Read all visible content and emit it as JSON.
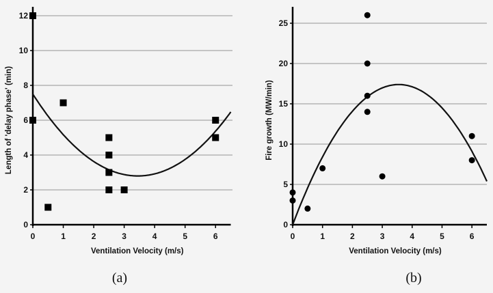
{
  "chart_data": [
    {
      "type": "scatter",
      "caption": "(a)",
      "xlabel": "Ventilation Velocity (m/s)",
      "ylabel": "Length of 'delay phase' (min)",
      "xlim": [
        0,
        6.5
      ],
      "ylim": [
        0,
        12
      ],
      "xticks": [
        0,
        1,
        2,
        3,
        4,
        5,
        6
      ],
      "yticks": [
        0,
        2,
        4,
        6,
        8,
        10,
        12
      ],
      "grid": "horizontal",
      "marker": "square",
      "points": [
        [
          0,
          12
        ],
        [
          0,
          6
        ],
        [
          0.5,
          1
        ],
        [
          1,
          7
        ],
        [
          2.5,
          5
        ],
        [
          2.5,
          4
        ],
        [
          2.5,
          3
        ],
        [
          2.5,
          2
        ],
        [
          3,
          2
        ],
        [
          6,
          6
        ],
        [
          6,
          5
        ]
      ],
      "trendline": {
        "type": "quadratic",
        "coefficients": [
          0.395,
          -2.7255,
          7.5
        ]
      }
    },
    {
      "type": "scatter",
      "caption": "(b)",
      "xlabel": "Ventilation Velocity (m/s)",
      "ylabel": "Fire growth (MW/min)",
      "xlim": [
        0,
        6.5
      ],
      "ylim": [
        0,
        27
      ],
      "xticks": [
        0,
        1,
        2,
        3,
        4,
        5,
        6
      ],
      "yticks": [
        0,
        5,
        10,
        15,
        20,
        25
      ],
      "grid": "horizontal",
      "marker": "circle",
      "points": [
        [
          0,
          4
        ],
        [
          0,
          3
        ],
        [
          0.5,
          2
        ],
        [
          1,
          7
        ],
        [
          2.5,
          26
        ],
        [
          2.5,
          20
        ],
        [
          2.5,
          16
        ],
        [
          2.5,
          14
        ],
        [
          3,
          6
        ],
        [
          6,
          11
        ],
        [
          6,
          8
        ]
      ],
      "trendline": {
        "type": "quadratic",
        "coefficients": [
          -1.38,
          9.798,
          0
        ]
      }
    }
  ],
  "colors": {
    "marker": "#000000",
    "grid": "#b4b4b4",
    "axis": "#000000",
    "background": "#f4f4f4"
  }
}
